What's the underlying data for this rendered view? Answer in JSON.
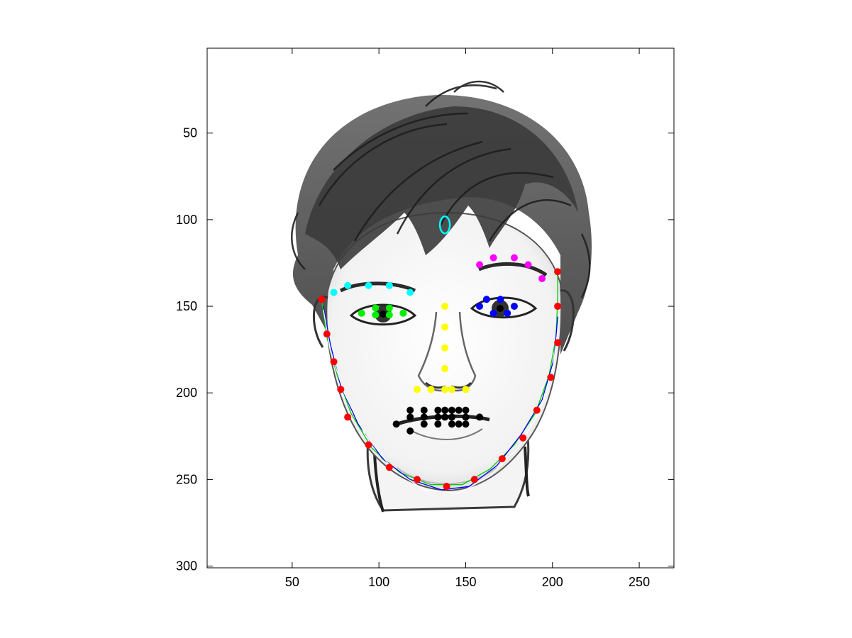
{
  "chart_data": {
    "type": "scatter",
    "title": "",
    "xlabel": "",
    "ylabel": "",
    "xlim": [
      1,
      270
    ],
    "ylim": [
      1,
      301
    ],
    "y_reversed": true,
    "background": "sketched-face-image",
    "x_ticks": [
      50,
      100,
      150,
      200,
      250
    ],
    "y_ticks": [
      50,
      100,
      150,
      200,
      250,
      300
    ],
    "grid": false,
    "legend": "none",
    "series": [
      {
        "color": "#ff0000",
        "marker": "dot",
        "points": [
          [
            67,
            146
          ],
          [
            70,
            166
          ],
          [
            74,
            182
          ],
          [
            78,
            198
          ],
          [
            82,
            214
          ],
          [
            94,
            230
          ],
          [
            106,
            243
          ],
          [
            122,
            250
          ],
          [
            139,
            254
          ],
          [
            155,
            250
          ],
          [
            171,
            238
          ],
          [
            183,
            226
          ],
          [
            191,
            210
          ],
          [
            199,
            191
          ],
          [
            203,
            171
          ],
          [
            203,
            150
          ],
          [
            203,
            130
          ]
        ]
      },
      {
        "color": "#00ffff",
        "marker": "dot",
        "points": [
          [
            74,
            142
          ],
          [
            82,
            138
          ],
          [
            94,
            138
          ],
          [
            106,
            138
          ],
          [
            118,
            142
          ]
        ]
      },
      {
        "color": "#ff00ff",
        "marker": "dot",
        "points": [
          [
            158,
            126
          ],
          [
            166,
            122
          ],
          [
            178,
            122
          ],
          [
            186,
            126
          ],
          [
            194,
            134
          ]
        ]
      },
      {
        "color": "#00ee00",
        "marker": "dot",
        "points": [
          [
            90,
            154
          ],
          [
            98,
            151
          ],
          [
            106,
            151
          ],
          [
            114,
            154
          ],
          [
            98,
            155
          ],
          [
            106,
            155
          ]
        ]
      },
      {
        "color": "#0000ff",
        "marker": "dot",
        "points": [
          [
            158,
            150
          ],
          [
            162,
            146
          ],
          [
            170,
            146
          ],
          [
            178,
            150
          ],
          [
            166,
            154
          ],
          [
            174,
            154
          ]
        ]
      },
      {
        "color": "#ffff00",
        "marker": "dot",
        "points": [
          [
            138,
            150
          ],
          [
            138,
            162
          ],
          [
            138,
            174
          ],
          [
            138,
            186
          ],
          [
            122,
            198
          ],
          [
            130,
            198
          ],
          [
            138,
            198
          ],
          [
            142,
            198
          ],
          [
            150,
            198
          ]
        ]
      },
      {
        "color": "#000000",
        "marker": "dot",
        "points": [
          [
            118,
            210
          ],
          [
            126,
            210
          ],
          [
            134,
            210
          ],
          [
            138,
            210
          ],
          [
            142,
            210
          ],
          [
            146,
            210
          ],
          [
            150,
            210
          ],
          [
            118,
            214
          ],
          [
            126,
            214
          ],
          [
            134,
            214
          ],
          [
            138,
            214
          ],
          [
            142,
            214
          ],
          [
            150,
            214
          ],
          [
            158,
            214
          ],
          [
            110,
            218
          ],
          [
            126,
            218
          ],
          [
            134,
            218
          ],
          [
            142,
            218
          ],
          [
            146,
            218
          ],
          [
            150,
            218
          ],
          [
            118,
            222
          ]
        ]
      },
      {
        "color": "#00ffff",
        "marker": "ellipse",
        "points": [
          [
            138,
            103
          ]
        ]
      }
    ],
    "curves": [
      {
        "color": "#00cc00",
        "points": [
          [
            67,
            146
          ],
          [
            70,
            168
          ],
          [
            76,
            190
          ],
          [
            84,
            212
          ],
          [
            96,
            232
          ],
          [
            112,
            246
          ],
          [
            130,
            253
          ],
          [
            148,
            253
          ],
          [
            164,
            244
          ],
          [
            178,
            230
          ],
          [
            190,
            212
          ],
          [
            198,
            190
          ],
          [
            202,
            168
          ],
          [
            203,
            146
          ],
          [
            203,
            130
          ]
        ]
      },
      {
        "color": "#0000ff",
        "points": [
          [
            68,
            150
          ],
          [
            72,
            172
          ],
          [
            78,
            196
          ],
          [
            88,
            218
          ],
          [
            102,
            238
          ],
          [
            118,
            250
          ],
          [
            136,
            256
          ],
          [
            152,
            254
          ],
          [
            168,
            242
          ],
          [
            182,
            224
          ],
          [
            194,
            204
          ],
          [
            201,
            180
          ],
          [
            203,
            156
          ]
        ]
      },
      {
        "color": "#ffffff",
        "points": [
          [
            68,
            152
          ],
          [
            72,
            176
          ],
          [
            80,
            200
          ],
          [
            92,
            224
          ],
          [
            108,
            244
          ],
          [
            126,
            256
          ],
          [
            146,
            258
          ],
          [
            164,
            248
          ],
          [
            180,
            232
          ],
          [
            192,
            212
          ],
          [
            200,
            188
          ],
          [
            203,
            164
          ]
        ]
      }
    ]
  }
}
